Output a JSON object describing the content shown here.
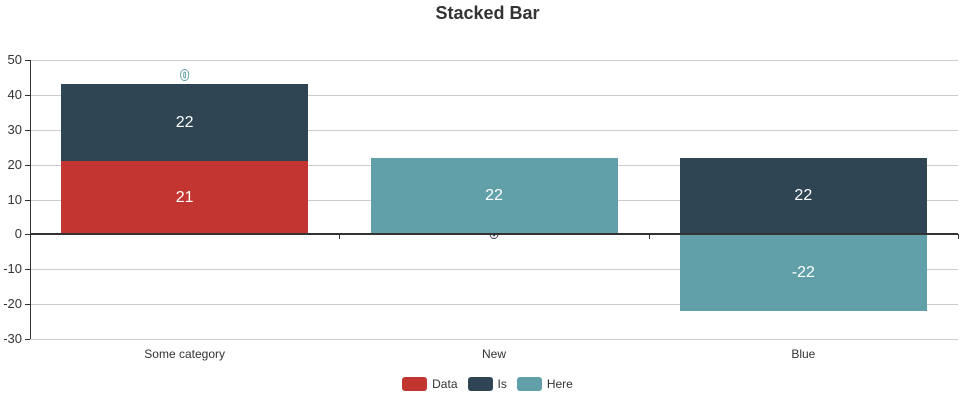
{
  "chart_data": {
    "type": "bar",
    "stacked": true,
    "title": "Stacked Bar",
    "categories": [
      "Some category",
      "New",
      "Blue"
    ],
    "series": [
      {
        "name": "Data",
        "color": "#c23531",
        "values": [
          21,
          0,
          0
        ]
      },
      {
        "name": "Is",
        "color": "#2f4554",
        "values": [
          22,
          0,
          22
        ]
      },
      {
        "name": "Here",
        "color": "#61a0a8",
        "values": [
          0,
          22,
          -22
        ]
      }
    ],
    "ylim": [
      -30,
      50
    ],
    "yticks": [
      50,
      40,
      30,
      20,
      10,
      0,
      -10,
      -20,
      -30
    ],
    "xlabel": "",
    "ylabel": "",
    "grid": true,
    "legend_position": "bottom",
    "visible_value_labels": [
      "21",
      "22",
      "22",
      "22",
      "-22",
      "0",
      "0"
    ]
  },
  "colors": {
    "axis": "#333333",
    "gridline": "#cccccc",
    "label_text": "#333333",
    "bar_value_text": "#ffffff",
    "title_text": "#333333",
    "background": "#ffffff"
  }
}
